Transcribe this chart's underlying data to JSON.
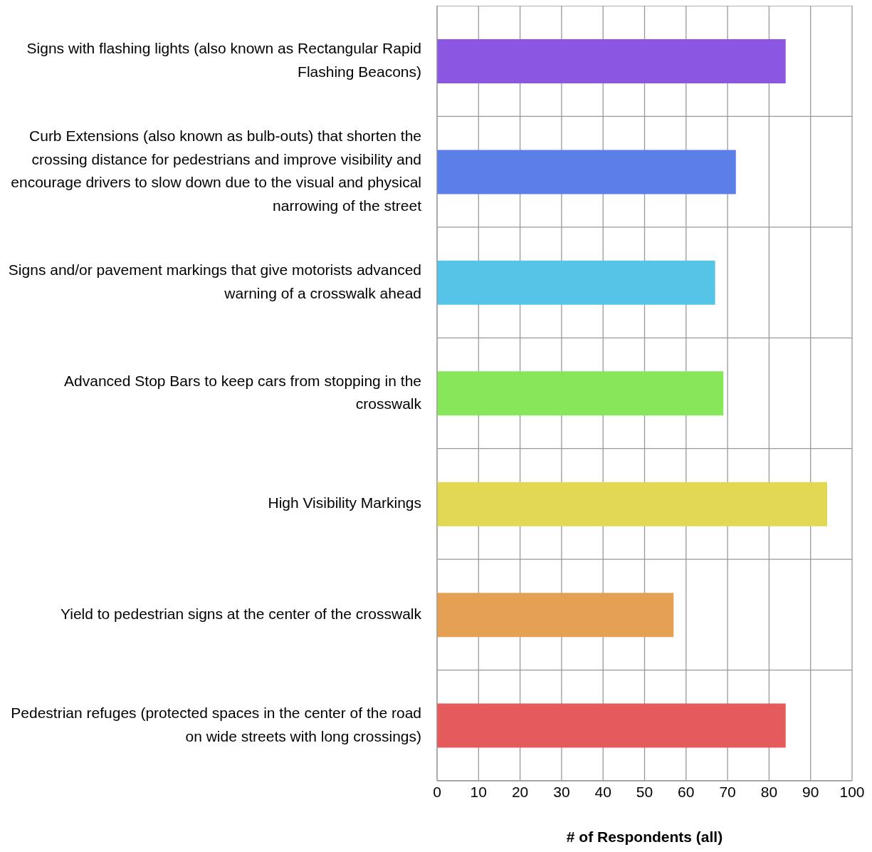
{
  "chart_data": {
    "type": "bar",
    "orientation": "horizontal",
    "xlabel": "# of Respondents (all)",
    "categories": [
      "Signs with flashing lights (also known as Rectangular Rapid Flashing Beacons)",
      "Curb Extensions (also known as bulb-outs) that shorten the crossing distance for pedestrians and improve visibility and encourage drivers to slow down due to the visual and physical narrowing of the street",
      "Signs and/or pavement markings that give motorists advanced warning of a crosswalk ahead",
      "Advanced Stop Bars to keep cars from stopping in the crosswalk",
      "High Visibility Markings",
      "Yield to pedestrian signs at the center of the crosswalk",
      "Pedestrian refuges (protected spaces in the center of the road on wide streets with long crossings)"
    ],
    "values": [
      84,
      72,
      67,
      69,
      94,
      57,
      84
    ],
    "colors": [
      "#8a56e2",
      "#5b7fe6",
      "#56c4e6",
      "#88e65b",
      "#e3d854",
      "#e4a154",
      "#e55a5a"
    ],
    "xlim": [
      0,
      100
    ],
    "xticks": [
      0,
      10,
      20,
      30,
      40,
      50,
      60,
      70,
      80,
      90,
      100
    ],
    "grid": true,
    "legend": false
  }
}
